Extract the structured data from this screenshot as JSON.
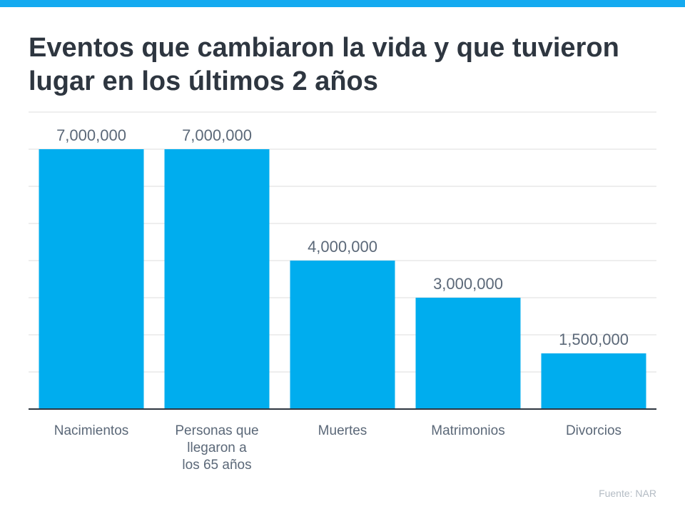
{
  "title": "Eventos que cambiaron la vida y que tuvieron lugar en los últimos 2 años",
  "source": "Fuente:  NAR",
  "colors": {
    "accent": "#14aaf0",
    "bar": "#00adee",
    "title": "#2e3640",
    "label": "#5b6878",
    "grid": "#dcdcdc",
    "axis": "#2e3640"
  },
  "chart_data": {
    "type": "bar",
    "title": "Eventos que cambiaron la vida y que tuvieron lugar en los últimos 2 años",
    "xlabel": "",
    "ylabel": "",
    "categories": [
      [
        "Nacimientos"
      ],
      [
        "Personas que",
        "llegaron a",
        "los 65 años"
      ],
      [
        "Muertes"
      ],
      [
        "Matrimonios"
      ],
      [
        "Divorcios"
      ]
    ],
    "values": [
      7000000,
      7000000,
      4000000,
      3000000,
      1500000
    ],
    "data_labels": [
      "7,000,000",
      "7,000,000",
      "4,000,000",
      "3,000,000",
      "1,500,000"
    ],
    "ylim": [
      0,
      8000000
    ],
    "grid_step": 1000000,
    "grid": true,
    "legend": "none"
  }
}
